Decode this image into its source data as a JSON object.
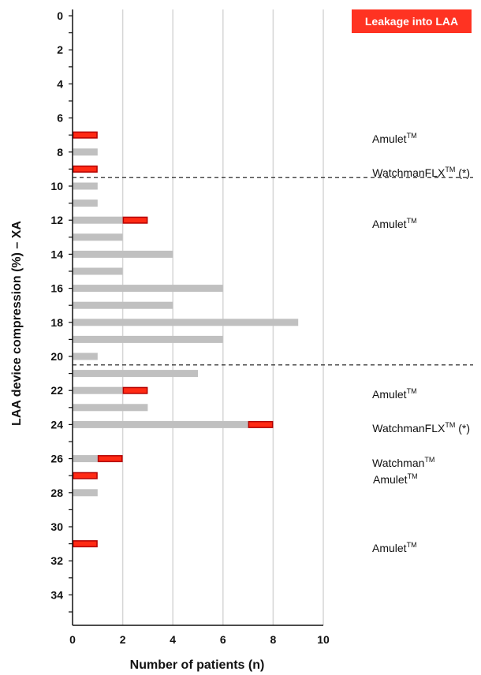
{
  "chart_data": {
    "type": "bar",
    "orientation": "horizontal",
    "stacked": true,
    "ylabel": "LAA device compression (%) – XA",
    "xlabel": "Number of patients (n)",
    "xlim": [
      0,
      10
    ],
    "ylim": [
      0,
      35
    ],
    "x_ticks": [
      "0",
      "2",
      "4",
      "6",
      "8",
      "10"
    ],
    "y_ticks": [
      "0",
      "2",
      "4",
      "6",
      "8",
      "10",
      "12",
      "14",
      "16",
      "18",
      "20",
      "22",
      "24",
      "26",
      "28",
      "30",
      "32",
      "34"
    ],
    "grid": "vertical",
    "legend": {
      "label": "Leakage into LAA",
      "color": "#ff3322",
      "placement": "top-right"
    },
    "colors": {
      "no_leak": "#c0c0c0",
      "leak": "#ff2a14",
      "leak_edge": "#b30000"
    },
    "series": [
      {
        "key": "no_leak",
        "values": [
          0,
          1,
          0,
          1,
          1,
          2,
          2,
          4,
          2,
          6,
          4,
          9,
          6,
          1,
          5,
          2,
          3,
          7,
          1,
          0,
          1,
          0
        ]
      },
      {
        "key": "leak",
        "values": [
          1,
          0,
          1,
          0,
          0,
          1,
          0,
          0,
          0,
          0,
          0,
          0,
          0,
          0,
          0,
          1,
          0,
          1,
          1,
          1,
          0,
          1
        ]
      }
    ],
    "bar_y": [
      7,
      8,
      9,
      10,
      11,
      12,
      13,
      14,
      15,
      16,
      17,
      18,
      19,
      20,
      21,
      22,
      23,
      24,
      26,
      27,
      28,
      31
    ],
    "dashed_lines_y": [
      9.5,
      20.5
    ],
    "annotations": [
      {
        "device": "Amulet",
        "sup": "TM",
        "suffix": "",
        "y": 7
      },
      {
        "device": "WatchmanFLX",
        "sup": "TM",
        "suffix": " (*)",
        "y": 9
      },
      {
        "device": "Amulet",
        "sup": "TM",
        "suffix": "",
        "y": 12
      },
      {
        "device": "Amulet",
        "sup": "TM",
        "suffix": "",
        "y": 22
      },
      {
        "device": "WatchmanFLX",
        "sup": "TM",
        "suffix": " (*)",
        "y": 24
      },
      {
        "device": "Watchman",
        "sup": "TM",
        "suffix": "",
        "y": 26
      },
      {
        "device": "Amulet",
        "sup": "TM",
        "suffix": "",
        "y": 27
      },
      {
        "device": "Amulet",
        "sup": "TM",
        "suffix": "",
        "y": 31
      }
    ]
  }
}
